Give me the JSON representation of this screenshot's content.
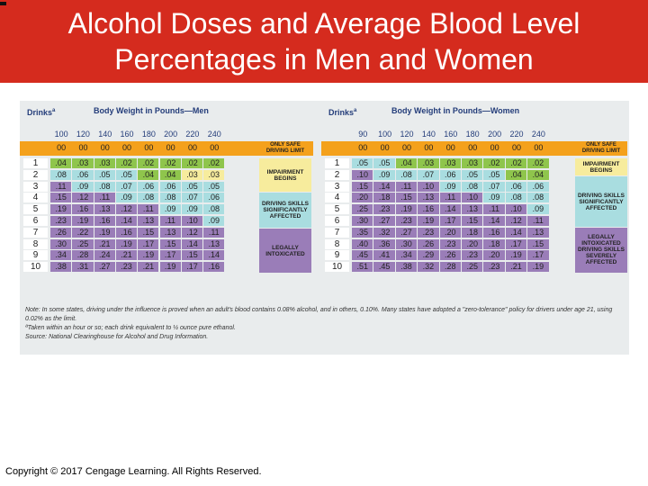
{
  "title": {
    "line1": "Alcohol Doses and Average Blood Level",
    "line2": "Percentages in Men and Women"
  },
  "men": {
    "drinks_label": "Drinks",
    "drinks_sup": "a",
    "heading": "Body Weight in Pounds—Men",
    "weights": [
      "100",
      "120",
      "140",
      "160",
      "180",
      "200",
      "220",
      "240"
    ],
    "band_values": [
      "00",
      "00",
      "00",
      "00",
      "00",
      "00",
      "00",
      "00"
    ],
    "band_label": "ONLY SAFE DRIVING LIMIT",
    "rows": [
      {
        "drink": "1",
        "vals": [
          ".04",
          ".03",
          ".03",
          ".02",
          ".02",
          ".02",
          ".02",
          ".02"
        ]
      },
      {
        "drink": "2",
        "vals": [
          ".08",
          ".06",
          ".05",
          ".05",
          ".04",
          ".04",
          ".03",
          ".03"
        ]
      },
      {
        "drink": "3",
        "vals": [
          ".11",
          ".09",
          ".08",
          ".07",
          ".06",
          ".06",
          ".05",
          ".05"
        ]
      },
      {
        "drink": "4",
        "vals": [
          ".15",
          ".12",
          ".11",
          ".09",
          ".08",
          ".08",
          ".07",
          ".06"
        ]
      },
      {
        "drink": "5",
        "vals": [
          ".19",
          ".16",
          ".13",
          ".12",
          ".11",
          ".09",
          ".09",
          ".08"
        ]
      },
      {
        "drink": "6",
        "vals": [
          ".23",
          ".19",
          ".16",
          ".14",
          ".13",
          ".11",
          ".10",
          ".09"
        ]
      },
      {
        "drink": "7",
        "vals": [
          ".26",
          ".22",
          ".19",
          ".16",
          ".15",
          ".13",
          ".12",
          ".11"
        ]
      },
      {
        "drink": "8",
        "vals": [
          ".30",
          ".25",
          ".21",
          ".19",
          ".17",
          ".15",
          ".14",
          ".13"
        ]
      },
      {
        "drink": "9",
        "vals": [
          ".34",
          ".28",
          ".24",
          ".21",
          ".19",
          ".17",
          ".15",
          ".14"
        ]
      },
      {
        "drink": "10",
        "vals": [
          ".38",
          ".31",
          ".27",
          ".23",
          ".21",
          ".19",
          ".17",
          ".16"
        ]
      }
    ],
    "categories": [
      "IMPAIRMENT BEGINS",
      "DRIVING SKILLS SIGNIFICANTLY AFFECTED",
      "LEGALLY INTOXICATED"
    ]
  },
  "women": {
    "drinks_label": "Drinks",
    "drinks_sup": "a",
    "heading": "Body Weight in Pounds—Women",
    "weights": [
      "90",
      "100",
      "120",
      "140",
      "160",
      "180",
      "200",
      "220",
      "240"
    ],
    "band_values": [
      "00",
      "00",
      "00",
      "00",
      "00",
      "00",
      "00",
      "00",
      "00"
    ],
    "band_label": "ONLY SAFE DRIVING LIMIT",
    "rows": [
      {
        "drink": "1",
        "vals": [
          ".05",
          ".05",
          ".04",
          ".03",
          ".03",
          ".03",
          ".02",
          ".02",
          ".02"
        ]
      },
      {
        "drink": "2",
        "vals": [
          ".10",
          ".09",
          ".08",
          ".07",
          ".06",
          ".05",
          ".05",
          ".04",
          ".04"
        ]
      },
      {
        "drink": "3",
        "vals": [
          ".15",
          ".14",
          ".11",
          ".10",
          ".09",
          ".08",
          ".07",
          ".06",
          ".06"
        ]
      },
      {
        "drink": "4",
        "vals": [
          ".20",
          ".18",
          ".15",
          ".13",
          ".11",
          ".10",
          ".09",
          ".08",
          ".08"
        ]
      },
      {
        "drink": "5",
        "vals": [
          ".25",
          ".23",
          ".19",
          ".16",
          ".14",
          ".13",
          ".11",
          ".10",
          ".09"
        ]
      },
      {
        "drink": "6",
        "vals": [
          ".30",
          ".27",
          ".23",
          ".19",
          ".17",
          ".15",
          ".14",
          ".12",
          ".11"
        ]
      },
      {
        "drink": "7",
        "vals": [
          ".35",
          ".32",
          ".27",
          ".23",
          ".20",
          ".18",
          ".16",
          ".14",
          ".13"
        ]
      },
      {
        "drink": "8",
        "vals": [
          ".40",
          ".36",
          ".30",
          ".26",
          ".23",
          ".20",
          ".18",
          ".17",
          ".15"
        ]
      },
      {
        "drink": "9",
        "vals": [
          ".45",
          ".41",
          ".34",
          ".29",
          ".26",
          ".23",
          ".20",
          ".19",
          ".17"
        ]
      },
      {
        "drink": "10",
        "vals": [
          ".51",
          ".45",
          ".38",
          ".32",
          ".28",
          ".25",
          ".23",
          ".21",
          ".19"
        ]
      }
    ],
    "categories": [
      "IMPAIRMENT BEGINS",
      "DRIVING SKILLS SIGNIFICANTLY AFFECTED",
      "LEGALLY INTOXICATED DRIVING SKILLS SEVERELY AFFECTED"
    ]
  },
  "notes": [
    "Note: In some states, driving under the influence is proved when an adult's blood contains 0.08% alcohol, and in others, 0.10%. Many states have adopted a \"zero-tolerance\" policy for drivers under age 21, using 0.02% as the limit.",
    "ªTaken within an hour or so; each drink equivalent to ½ ounce pure ethanol.",
    "Source: National Clearinghouse for Alcohol and Drug Information."
  ],
  "footer": "Copyright © 2017 Cengage Learning. All Rights Reserved.",
  "colors": {
    "title_bg": "#d52b1e",
    "band": "#f4a11c",
    "green": "#8fc54c",
    "yellow": "#f7ec9d",
    "sky": "#a9dde0",
    "purple": "#9a7db8"
  }
}
